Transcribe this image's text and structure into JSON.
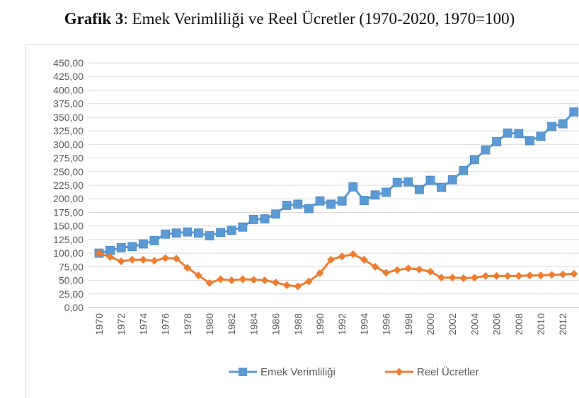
{
  "title": {
    "bold": "Grafik 3",
    "rest": ": Emek Verimliliği ve Reel Ücretler (1970-2020, 1970=100)"
  },
  "chart_data": {
    "type": "line",
    "x": [
      1970,
      1971,
      1972,
      1973,
      1974,
      1975,
      1976,
      1977,
      1978,
      1979,
      1980,
      1981,
      1982,
      1983,
      1984,
      1985,
      1986,
      1987,
      1988,
      1989,
      1990,
      1991,
      1992,
      1993,
      1994,
      1995,
      1996,
      1997,
      1998,
      1999,
      2000,
      2001,
      2002,
      2003,
      2004,
      2005,
      2006,
      2007,
      2008,
      2009,
      2010,
      2011,
      2012,
      2013
    ],
    "x_tick_labels": [
      "1970",
      "1972",
      "1974",
      "1976",
      "1978",
      "1980",
      "1982",
      "1984",
      "1986",
      "1988",
      "1990",
      "1992",
      "1994",
      "1996",
      "1998",
      "2000",
      "2002",
      "2004",
      "2006",
      "2008",
      "2010",
      "2012"
    ],
    "y_tick_labels": [
      "0,00",
      "25,00",
      "50,00",
      "75,00",
      "100,00",
      "125,00",
      "150,00",
      "175,00",
      "200,00",
      "225,00",
      "250,00",
      "275,00",
      "300,00",
      "325,00",
      "350,00",
      "375,00",
      "400,00",
      "425,00",
      "450,00"
    ],
    "ylim": [
      0,
      450
    ],
    "grid": true,
    "legend_position": "bottom",
    "series": [
      {
        "name": "Emek Verimliliği",
        "color": "#5b9bd5",
        "marker": "square",
        "values": [
          100,
          105,
          110,
          112,
          117,
          123,
          135,
          137,
          139,
          137,
          132,
          138,
          142,
          148,
          162,
          163,
          172,
          188,
          190,
          182,
          196,
          190,
          196,
          222,
          197,
          207,
          212,
          230,
          231,
          217,
          234,
          221,
          235,
          252,
          272,
          290,
          305,
          321,
          320,
          307,
          315,
          333,
          338,
          360
        ]
      },
      {
        "name": "Reel Ücretler",
        "color": "#ed7d31",
        "marker": "diamond",
        "values": [
          100,
          93,
          85,
          88,
          88,
          86,
          91,
          90,
          73,
          59,
          45,
          52,
          50,
          52,
          51,
          50,
          46,
          41,
          39,
          48,
          63,
          88,
          94,
          98,
          88,
          75,
          64,
          69,
          72,
          70,
          66,
          55,
          55,
          54,
          55,
          58,
          58,
          58,
          58,
          59,
          59,
          60,
          61,
          62
        ]
      }
    ]
  }
}
